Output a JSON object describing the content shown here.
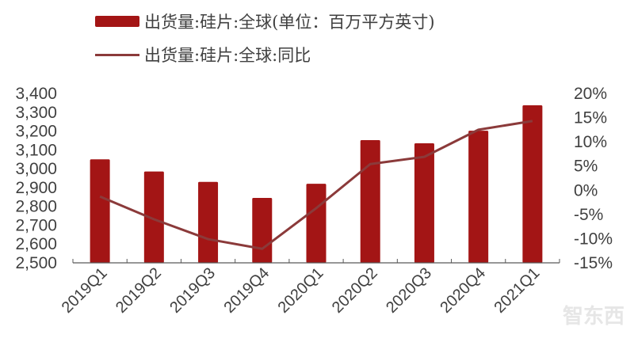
{
  "legend": {
    "bar_label": "出货量:硅片:全球(单位：百万平方英寸)",
    "line_label": "出货量:硅片:全球:同比"
  },
  "colors": {
    "bar": "#a31515",
    "line": "#8b3a3a",
    "axis": "#595959",
    "text": "#404040"
  },
  "watermark": "智东西",
  "chart_data": {
    "type": "bar+line",
    "title": "",
    "categories": [
      "2019Q1",
      "2019Q2",
      "2019Q3",
      "2019Q4",
      "2020Q1",
      "2020Q2",
      "2020Q3",
      "2020Q4",
      "2021Q1"
    ],
    "series": [
      {
        "name": "出货量:硅片:全球(单位：百万平方英寸)",
        "type": "bar",
        "axis": "left",
        "values": [
          3050,
          2985,
          2930,
          2845,
          2920,
          3152,
          3135,
          3202,
          3337
        ]
      },
      {
        "name": "出货量:硅片:全球:同比",
        "type": "line",
        "axis": "right",
        "unit": "%",
        "values": [
          -1.3,
          -6.0,
          -10.1,
          -12.1,
          -3.7,
          5.4,
          6.9,
          12.5,
          14.3
        ]
      }
    ],
    "left_axis": {
      "ylim": [
        2500,
        3400
      ],
      "ticks": [
        "2,500",
        "2,600",
        "2,700",
        "2,800",
        "2,900",
        "3,000",
        "3,100",
        "3,200",
        "3,300",
        "3,400"
      ]
    },
    "right_axis": {
      "ylim": [
        -15,
        20
      ],
      "ticks": [
        "-15%",
        "-10%",
        "-5%",
        "0%",
        "5%",
        "10%",
        "15%",
        "20%"
      ]
    },
    "xlabel": "",
    "ylabel": "",
    "grid": false,
    "legend_position": "top"
  }
}
